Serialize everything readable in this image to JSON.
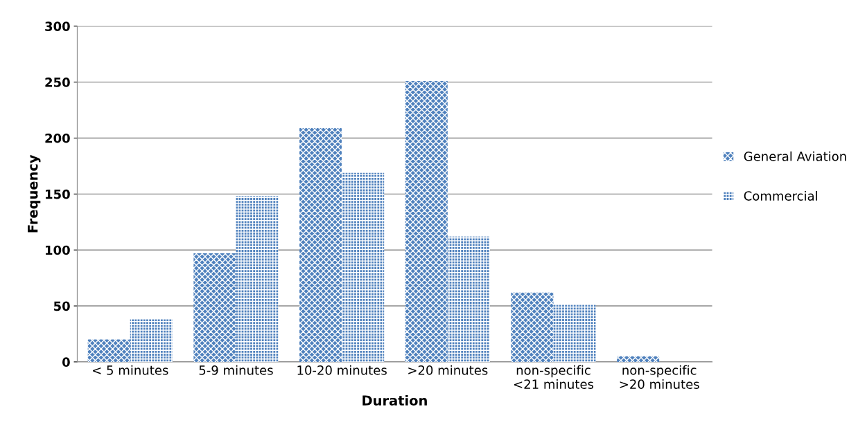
{
  "chart_data": {
    "type": "bar",
    "xlabel": "Duration",
    "ylabel": "Frequency",
    "categories": [
      "< 5 minutes",
      "5-9 minutes",
      "10-20 minutes",
      ">20 minutes",
      "non-specific\n<21 minutes",
      "non-specific\n>20 minutes"
    ],
    "series": [
      {
        "name": "General Aviation",
        "color": "#4f81bd",
        "values": [
          20,
          97,
          209,
          251,
          62,
          5
        ]
      },
      {
        "name": "Commercial",
        "color": "#4f81bd",
        "values": [
          38,
          148,
          169,
          112,
          51,
          0
        ]
      }
    ],
    "ylim": [
      0,
      300
    ],
    "yticks": [
      0,
      50,
      100,
      150,
      200,
      250,
      300
    ],
    "grid": "y",
    "legend": "right"
  }
}
